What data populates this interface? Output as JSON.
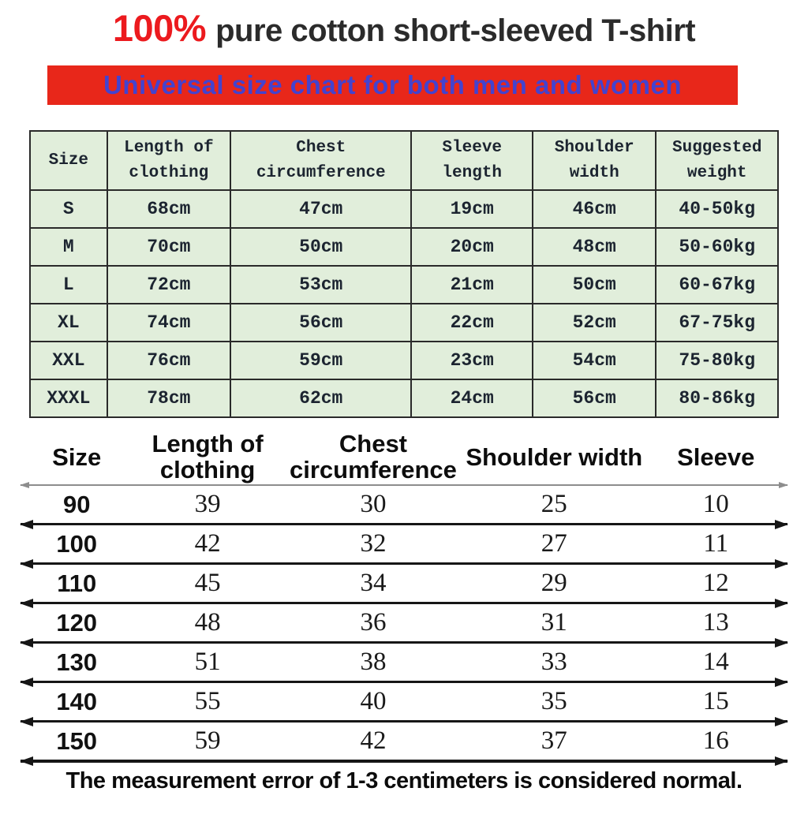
{
  "title": {
    "highlight": "100%",
    "rest": "pure cotton short-sleeved T-shirt"
  },
  "banner": {
    "text": "Universal size chart for both men and women",
    "background_color": "#e8271a",
    "text_color": "#4343cf"
  },
  "adult_table": {
    "background_color": "#e1eedb",
    "headers": [
      "Size",
      "Length of clothing",
      "Chest circumference",
      "Sleeve length",
      "Shoulder width",
      "Suggested weight"
    ],
    "rows": [
      [
        "S",
        "68cm",
        "47cm",
        "19cm",
        "46cm",
        "40-50kg"
      ],
      [
        "M",
        "70cm",
        "50cm",
        "20cm",
        "48cm",
        "50-60kg"
      ],
      [
        "L",
        "72cm",
        "53cm",
        "21cm",
        "50cm",
        "60-67kg"
      ],
      [
        "XL",
        "74cm",
        "56cm",
        "22cm",
        "52cm",
        "67-75kg"
      ],
      [
        "XXL",
        "76cm",
        "59cm",
        "23cm",
        "54cm",
        "75-80kg"
      ],
      [
        "XXXL",
        "78cm",
        "62cm",
        "24cm",
        "56cm",
        "80-86kg"
      ]
    ]
  },
  "kids_table": {
    "headers": [
      "Size",
      "Length of clothing",
      "Chest circumference",
      "Shoulder width",
      "Sleeve"
    ],
    "rows": [
      [
        "90",
        "39",
        "30",
        "25",
        "10"
      ],
      [
        "100",
        "42",
        "32",
        "27",
        "11"
      ],
      [
        "110",
        "45",
        "34",
        "29",
        "12"
      ],
      [
        "120",
        "48",
        "36",
        "31",
        "13"
      ],
      [
        "130",
        "51",
        "38",
        "33",
        "14"
      ],
      [
        "140",
        "55",
        "40",
        "35",
        "15"
      ],
      [
        "150",
        "59",
        "42",
        "37",
        "16"
      ]
    ]
  },
  "footnote": "The measurement error of 1-3 centimeters is considered normal."
}
